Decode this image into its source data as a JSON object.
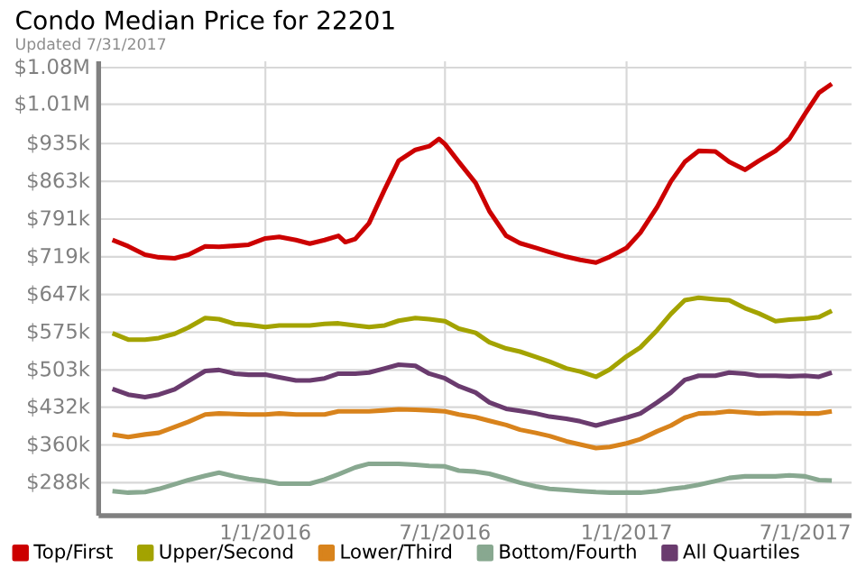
{
  "chart_data": {
    "type": "line",
    "title": "Condo Median Price for 22201",
    "subtitle": "Updated 7/31/2017",
    "x": [
      "2015-07-30",
      "2015-08-15",
      "2015-09-01",
      "2015-09-15",
      "2015-10-01",
      "2015-10-15",
      "2015-11-01",
      "2015-11-15",
      "2015-12-01",
      "2015-12-15",
      "2016-01-01",
      "2016-01-15",
      "2016-02-01",
      "2016-02-15",
      "2016-03-01",
      "2016-03-15",
      "2016-04-01",
      "2016-04-15",
      "2016-05-01",
      "2016-05-15",
      "2016-06-01",
      "2016-06-15",
      "2016-07-01",
      "2016-07-15",
      "2016-08-01",
      "2016-08-15",
      "2016-09-01",
      "2016-09-15",
      "2016-10-01",
      "2016-10-15",
      "2016-11-01",
      "2016-11-15",
      "2016-12-01",
      "2016-12-15",
      "2017-01-01",
      "2017-01-15",
      "2017-02-01",
      "2017-02-15",
      "2017-03-01",
      "2017-03-15",
      "2017-04-01",
      "2017-04-15",
      "2017-05-01",
      "2017-05-15",
      "2017-06-01",
      "2017-06-15",
      "2017-07-01",
      "2017-07-15",
      "2017-07-28"
    ],
    "series": [
      {
        "name": "Top/First",
        "color": "#cc0000",
        "x": [
          "2015-07-30",
          "2015-08-15",
          "2015-09-01",
          "2015-09-15",
          "2015-10-01",
          "2015-10-15",
          "2015-11-01",
          "2015-11-15",
          "2015-12-01",
          "2015-12-15",
          "2016-01-01",
          "2016-01-15",
          "2016-02-01",
          "2016-02-15",
          "2016-03-01",
          "2016-03-15",
          "2016-03-22",
          "2016-04-01",
          "2016-04-15",
          "2016-05-01",
          "2016-05-15",
          "2016-06-01",
          "2016-06-15",
          "2016-06-25",
          "2016-07-01",
          "2016-07-15",
          "2016-08-01",
          "2016-08-15",
          "2016-09-01",
          "2016-09-15",
          "2016-10-01",
          "2016-10-15",
          "2016-11-01",
          "2016-11-15",
          "2016-12-01",
          "2016-12-15",
          "2017-01-01",
          "2017-01-15",
          "2017-02-01",
          "2017-02-15",
          "2017-03-01",
          "2017-03-15",
          "2017-04-01",
          "2017-04-15",
          "2017-05-01",
          "2017-05-15",
          "2017-06-01",
          "2017-06-15",
          "2017-07-01",
          "2017-07-15",
          "2017-07-28"
        ],
        "values": [
          751000,
          739000,
          723000,
          718000,
          716000,
          723000,
          739000,
          738000,
          740000,
          742000,
          754000,
          757000,
          751000,
          744000,
          751000,
          759000,
          747000,
          753000,
          783000,
          848000,
          902000,
          923000,
          930000,
          944000,
          934000,
          900000,
          860000,
          806000,
          759000,
          745000,
          736000,
          728000,
          719000,
          713000,
          708000,
          719000,
          736000,
          765000,
          814000,
          863000,
          900000,
          921000,
          920000,
          900000,
          885000,
          902000,
          921000,
          944000,
          992000,
          1032000,
          1049000
        ]
      },
      {
        "name": "Upper/Second",
        "color": "#a3a300",
        "values": [
          573000,
          561000,
          561000,
          564000,
          572000,
          584000,
          602000,
          600000,
          591000,
          589000,
          585000,
          588000,
          588000,
          588000,
          591000,
          592000,
          588000,
          585000,
          588000,
          597000,
          602000,
          600000,
          596000,
          582000,
          574000,
          556000,
          544000,
          538000,
          528000,
          519000,
          506000,
          500000,
          490000,
          504000,
          529000,
          546000,
          579000,
          610000,
          636000,
          641000,
          638000,
          636000,
          621000,
          611000,
          596000,
          599000,
          601000,
          604000,
          616000
        ]
      },
      {
        "name": "Lower/Third",
        "color": "#d8831c",
        "values": [
          380000,
          375000,
          380000,
          383000,
          394000,
          404000,
          418000,
          420000,
          419000,
          418000,
          418000,
          420000,
          418000,
          418000,
          418000,
          424000,
          424000,
          424000,
          426000,
          428000,
          427000,
          426000,
          424000,
          418000,
          413000,
          406000,
          398000,
          389000,
          383000,
          377000,
          367000,
          361000,
          354000,
          356000,
          363000,
          371000,
          386000,
          397000,
          412000,
          420000,
          421000,
          424000,
          422000,
          420000,
          421000,
          421000,
          420000,
          420000,
          424000
        ]
      },
      {
        "name": "Bottom/Fourth",
        "color": "#88a890",
        "values": [
          272000,
          269000,
          270000,
          276000,
          285000,
          293000,
          301000,
          307000,
          300000,
          295000,
          291000,
          286000,
          286000,
          286000,
          294000,
          304000,
          317000,
          324000,
          324000,
          324000,
          322000,
          320000,
          319000,
          311000,
          309000,
          305000,
          296000,
          288000,
          281000,
          276000,
          274000,
          272000,
          270000,
          269000,
          269000,
          269000,
          272000,
          276000,
          279000,
          284000,
          291000,
          297000,
          300000,
          300000,
          300000,
          302000,
          300000,
          293000,
          292000
        ]
      },
      {
        "name": "All Quartiles",
        "color": "#6a3b6e",
        "values": [
          467000,
          456000,
          451000,
          456000,
          466000,
          482000,
          501000,
          503000,
          496000,
          494000,
          494000,
          489000,
          483000,
          483000,
          487000,
          496000,
          496000,
          498000,
          506000,
          513000,
          511000,
          496000,
          487000,
          472000,
          460000,
          441000,
          429000,
          425000,
          420000,
          414000,
          410000,
          405000,
          397000,
          404000,
          412000,
          420000,
          441000,
          460000,
          484000,
          492000,
          492000,
          498000,
          496000,
          492000,
          492000,
          491000,
          492000,
          490000,
          498000
        ]
      }
    ],
    "xlim": [
      "2015-07-16",
      "2017-08-17"
    ],
    "xticks": [
      {
        "value": "2016-01-01",
        "label": "1/1/2016"
      },
      {
        "value": "2016-07-01",
        "label": "7/1/2016"
      },
      {
        "value": "2017-01-01",
        "label": "1/1/2017"
      },
      {
        "value": "2017-07-01",
        "label": "7/1/2017"
      }
    ],
    "ylim": [
      225000,
      1092000
    ],
    "yticks": [
      {
        "value": 288000,
        "label": "$288k"
      },
      {
        "value": 360000,
        "label": "$360k"
      },
      {
        "value": 432000,
        "label": "$432k"
      },
      {
        "value": 503000,
        "label": "$503k"
      },
      {
        "value": 575000,
        "label": "$575k"
      },
      {
        "value": 647000,
        "label": "$647k"
      },
      {
        "value": 719000,
        "label": "$719k"
      },
      {
        "value": 791000,
        "label": "$791k"
      },
      {
        "value": 863000,
        "label": "$863k"
      },
      {
        "value": 935000,
        "label": "$935k"
      },
      {
        "value": 1010000,
        "label": "$1.01M"
      },
      {
        "value": 1080000,
        "label": "$1.08M"
      }
    ],
    "grid": true,
    "legend": "bottom",
    "marker": "none",
    "line_style": "solid"
  }
}
